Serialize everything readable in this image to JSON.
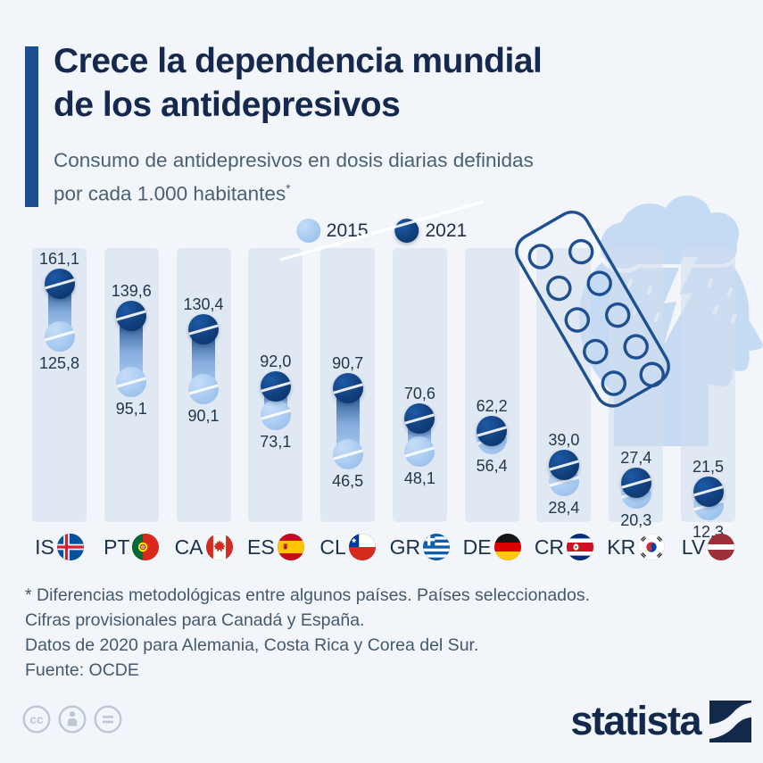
{
  "title": {
    "line1": "Crece la dependencia mundial",
    "line2": "de los antidepresivos"
  },
  "subtitle": {
    "line1": "Consumo de antidepresivos en dosis diarias definidas",
    "line2": "por cada 1.000 habitantes",
    "marker": "*"
  },
  "legend": {
    "items": [
      {
        "label": "2015"
      },
      {
        "label": "2021"
      }
    ]
  },
  "chart_data": {
    "type": "dumbbell",
    "title": "Consumo de antidepresivos en dosis diarias definidas por cada 1.000 habitantes",
    "series_labels": [
      "2015",
      "2021"
    ],
    "categories": [
      "IS",
      "PT",
      "CA",
      "ES",
      "CL",
      "GR",
      "DE",
      "CR",
      "KR",
      "LV"
    ],
    "countries": [
      {
        "code": "IS",
        "v2015": 125.8,
        "v2021": 161.1,
        "label2015": "125,8",
        "label2021": "161,1"
      },
      {
        "code": "PT",
        "v2015": 95.1,
        "v2021": 139.6,
        "label2015": "95,1",
        "label2021": "139,6"
      },
      {
        "code": "CA",
        "v2015": 90.1,
        "v2021": 130.4,
        "label2015": "90,1",
        "label2021": "130,4"
      },
      {
        "code": "ES",
        "v2015": 73.1,
        "v2021": 92.0,
        "label2015": "73,1",
        "label2021": "92,0"
      },
      {
        "code": "CL",
        "v2015": 46.5,
        "v2021": 90.7,
        "label2015": "46,5",
        "label2021": "90,7"
      },
      {
        "code": "GR",
        "v2015": 48.1,
        "v2021": 70.6,
        "label2015": "48,1",
        "label2021": "70,6"
      },
      {
        "code": "DE",
        "v2015": 56.4,
        "v2021": 62.2,
        "label2015": "56,4",
        "label2021": "62,2"
      },
      {
        "code": "CR",
        "v2015": 28.4,
        "v2021": 39.0,
        "label2015": "28,4",
        "label2021": "39,0"
      },
      {
        "code": "KR",
        "v2015": 20.3,
        "v2021": 27.4,
        "label2015": "20,3",
        "label2021": "27,4"
      },
      {
        "code": "LV",
        "v2015": 12.3,
        "v2021": 21.5,
        "label2015": "12,3",
        "label2021": "21,5"
      }
    ],
    "value_axis": {
      "min": 0,
      "implied_max": 170
    },
    "legend_position": "top-center",
    "colors": {
      "y2015": "#a9cbf1",
      "y2021": "#11407e"
    }
  },
  "footnotes": {
    "line1": "* Diferencias metodológicas entre algunos países. Países seleccionados.",
    "line2": "Cifras provisionales para Canadá y España.",
    "line3": "Datos de 2020 para Alemania, Costa Rica y Corea del Sur."
  },
  "source": "Fuente: OCDE",
  "branding": {
    "logo_text": "statista"
  },
  "colors": {
    "page_bg": "#f2f5f9",
    "column_bg": "#e7ebf4",
    "accent_bar": "#1c4e91",
    "title": "#15294e",
    "subtitle": "#4b6173",
    "footnote": "#45596d",
    "pill_dark": "#11407e",
    "pill_light": "#a9cbf1",
    "illustration_fill": "#c5dbf4",
    "blister_stroke": "#1d4f91",
    "license_icon": "#bdc8d4",
    "logo": "#12294b"
  }
}
